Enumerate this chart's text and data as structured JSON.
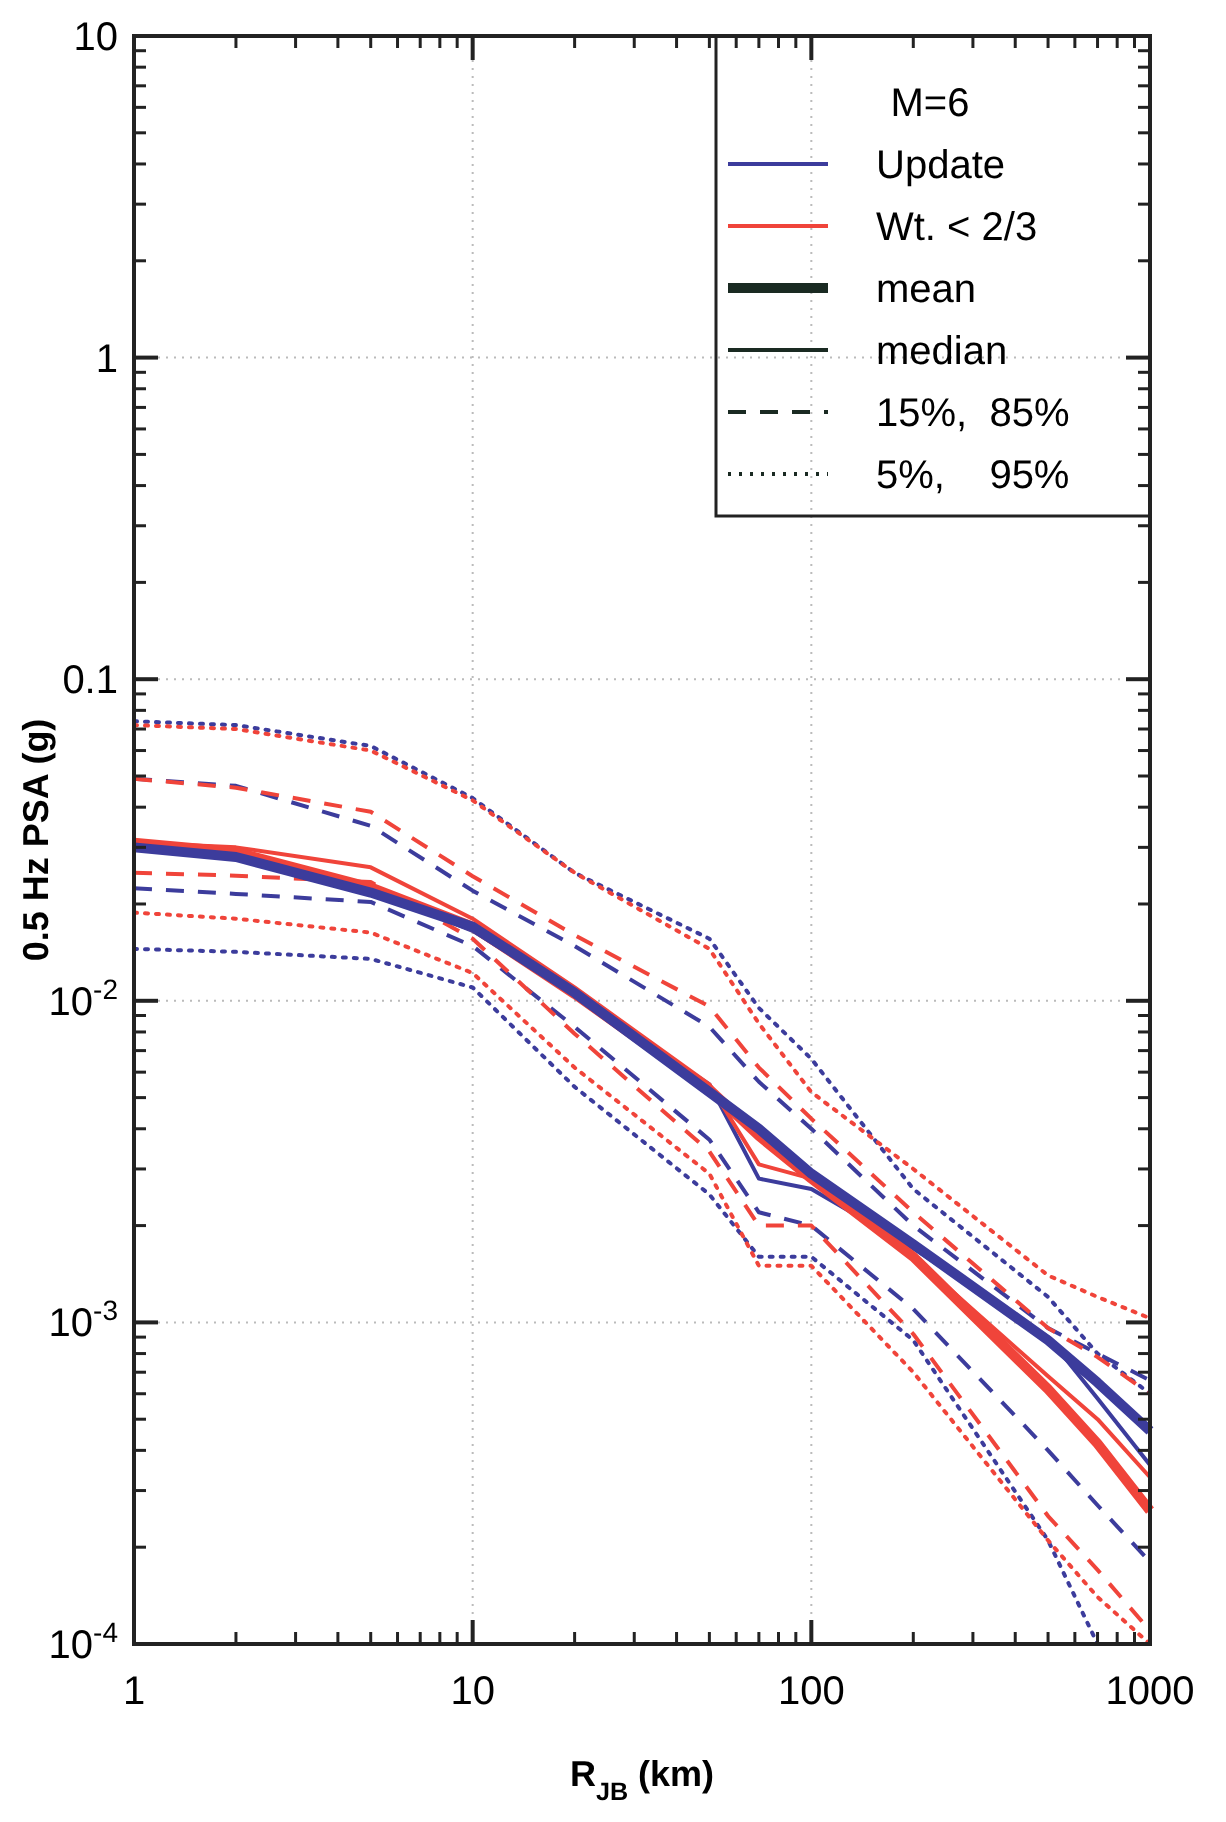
{
  "chart_data": {
    "type": "line",
    "xlabel": "R$_{JB}$ (km)",
    "ylabel": "0.5 Hz PSA (g)",
    "x": [
      1,
      2,
      5,
      10,
      20,
      50,
      70,
      100,
      200,
      500,
      700,
      1000
    ],
    "log": "xy",
    "grid": true,
    "legend": "top right",
    "legend_title": "M=6",
    "xlim": [
      1,
      1000
    ],
    "xticks": [
      1,
      10,
      100,
      1000
    ],
    "ylim": [
      0.0001,
      10
    ],
    "yticks": [
      {
        "value": 0.0001,
        "label": "10$^{-4}$"
      },
      {
        "value": 0.001,
        "label": "10$^{-3}$"
      },
      {
        "value": 0.01,
        "label": "10$^{-2}$"
      },
      0.1,
      1,
      10
    ],
    "annotations": [
      "mean",
      "median",
      "15%,  85%",
      "5%,    95%"
    ],
    "series": [
      {
        "line_style": "dotted",
        "color": "#3c3c9c",
        "values": [
          0.074,
          0.072,
          0.062,
          0.0427,
          0.025,
          0.0156,
          0.0095,
          0.0066,
          0.0026,
          0.0012,
          0.0008,
          0.0006
        ]
      },
      {
        "line_style": "dotted",
        "color": "#f0443a",
        "values": [
          0.072,
          0.07,
          0.06,
          0.042,
          0.025,
          0.0145,
          0.0085,
          0.0052,
          0.003,
          0.0014,
          0.0012,
          0.00103
        ]
      },
      {
        "line_style": "dotted",
        "color": "#3c3c9c",
        "values": [
          0.0145,
          0.0142,
          0.0135,
          0.011,
          0.0054,
          0.0025,
          0.0016,
          0.0016,
          0.00088,
          0.00021,
          0.0001,
          null
        ]
      },
      {
        "line_style": "dotted",
        "color": "#f0443a",
        "values": [
          0.0188,
          0.018,
          0.0163,
          0.0122,
          0.0062,
          0.0029,
          0.0015,
          0.0015,
          0.0007,
          0.00021,
          0.00014,
          0.0001
        ]
      },
      {
        "line_style": "dashed",
        "color": "#3c3c9c",
        "values": [
          0.049,
          0.0466,
          0.035,
          0.022,
          0.0148,
          0.0083,
          0.0056,
          0.004,
          0.002,
          0.00096,
          0.0008,
          0.00066
        ]
      },
      {
        "line_style": "dashed",
        "color": "#f0443a",
        "values": [
          0.049,
          0.046,
          0.0387,
          0.0244,
          0.016,
          0.0096,
          0.0062,
          0.0043,
          0.0022,
          0.00096,
          0.00078,
          0.0006
        ]
      },
      {
        "line_style": "dashed",
        "color": "#3c3c9c",
        "values": [
          0.0224,
          0.0215,
          0.0203,
          0.0148,
          0.0083,
          0.0037,
          0.0022,
          0.002,
          0.0011,
          0.0004,
          0.00027,
          0.00018
        ]
      },
      {
        "line_style": "dashed",
        "color": "#f0443a",
        "values": [
          0.025,
          0.0245,
          0.0234,
          0.0156,
          0.0079,
          0.0034,
          0.002,
          0.002,
          0.00092,
          0.00025,
          0.00017,
          0.00011
        ]
      },
      {
        "line_style": "solid",
        "name": "Update",
        "color": "#3c3c9c",
        "values": [
          0.03,
          0.028,
          0.022,
          0.0165,
          0.0105,
          0.0055,
          0.0028,
          0.0026,
          0.0017,
          0.0009,
          0.00058,
          0.00036
        ]
      },
      {
        "line_style": "solid",
        "name": "Wt. < 2/3",
        "color": "#f0443a",
        "values": [
          0.031,
          0.03,
          0.026,
          0.018,
          0.011,
          0.0055,
          0.0031,
          0.0028,
          0.0016,
          0.00068,
          0.0005,
          0.00033
        ]
      },
      {
        "line_style": "solid",
        "color": "#f0443a",
        "values": [
          0.031,
          0.029,
          0.0225,
          0.017,
          0.0105,
          0.0053,
          0.0038,
          0.0028,
          0.0016,
          0.00062,
          0.00042,
          0.00026
        ]
      },
      {
        "line_style": "solid",
        "color": "#3c3c9c",
        "values": [
          0.03,
          0.028,
          0.0217,
          0.017,
          0.0106,
          0.0052,
          0.004,
          0.0029,
          0.00175,
          0.00088,
          0.00065,
          0.00046
        ]
      }
    ]
  }
}
